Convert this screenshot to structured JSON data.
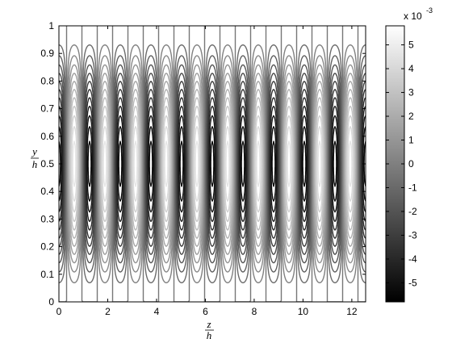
{
  "chart_data": {
    "type": "contour",
    "x": {
      "label_num": "z",
      "label_den": "h",
      "range": [
        0,
        12.566
      ],
      "ticks": [
        0,
        2,
        4,
        6,
        8,
        10,
        12
      ]
    },
    "y": {
      "label_num": "y",
      "label_den": "h",
      "range": [
        0,
        1
      ],
      "ticks": [
        0,
        0.1,
        0.2,
        0.3,
        0.4,
        0.5,
        0.6,
        0.7,
        0.8,
        0.9,
        1
      ]
    },
    "field": {
      "amplitude": 0.0058,
      "z_period": 1.2566,
      "description_of_levels": "filled contour lines, black=min, white=max"
    },
    "contour_levels": [
      -0.0055,
      -0.005,
      -0.0045,
      -0.004,
      -0.0035,
      -0.003,
      -0.0025,
      -0.002,
      -0.0015,
      -0.001,
      -0.0005,
      0,
      0.0005,
      0.001,
      0.0015,
      0.002,
      0.0025,
      0.003,
      0.0035,
      0.004,
      0.0045,
      0.005,
      0.0055
    ],
    "colorbar": {
      "range": [
        -0.0058,
        0.0058
      ],
      "ticks": [
        -5,
        -4,
        -3,
        -2,
        -1,
        0,
        1,
        2,
        3,
        4,
        5
      ],
      "multiplier_label": "x 10",
      "multiplier_exp": "-3",
      "colormap": "gray"
    },
    "grid": false,
    "legend": "colorbar-right"
  }
}
